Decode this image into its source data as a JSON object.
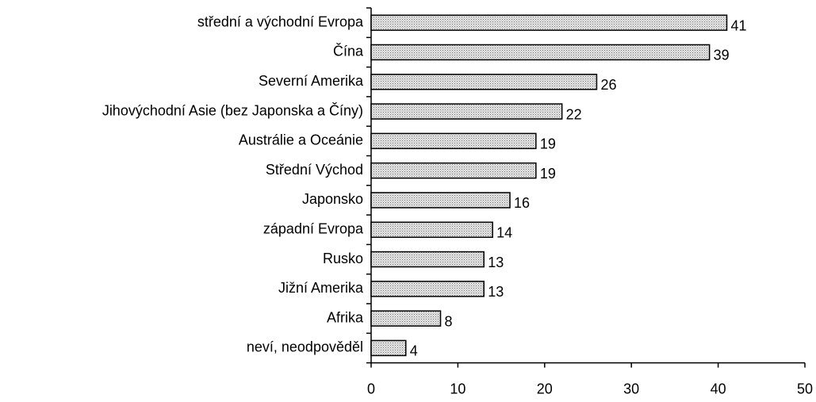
{
  "chart_data": {
    "type": "barh",
    "categories": [
      "střední a východní Evropa",
      "Čína",
      "Severní Amerika",
      "Jihovýchodní Asie (bez Japonska a Číny)",
      "Austrálie a Oceánie",
      "Střední Východ",
      "Japonsko",
      "západní Evropa",
      "Rusko",
      "Jižní Amerika",
      "Afrika",
      "neví, neodpověděl"
    ],
    "values": [
      41,
      39,
      26,
      22,
      19,
      19,
      16,
      14,
      13,
      13,
      8,
      4
    ],
    "color": "#c8c8c8",
    "xlim": [
      0,
      50
    ],
    "xticks": [
      0,
      10,
      20,
      30,
      40,
      50
    ]
  }
}
